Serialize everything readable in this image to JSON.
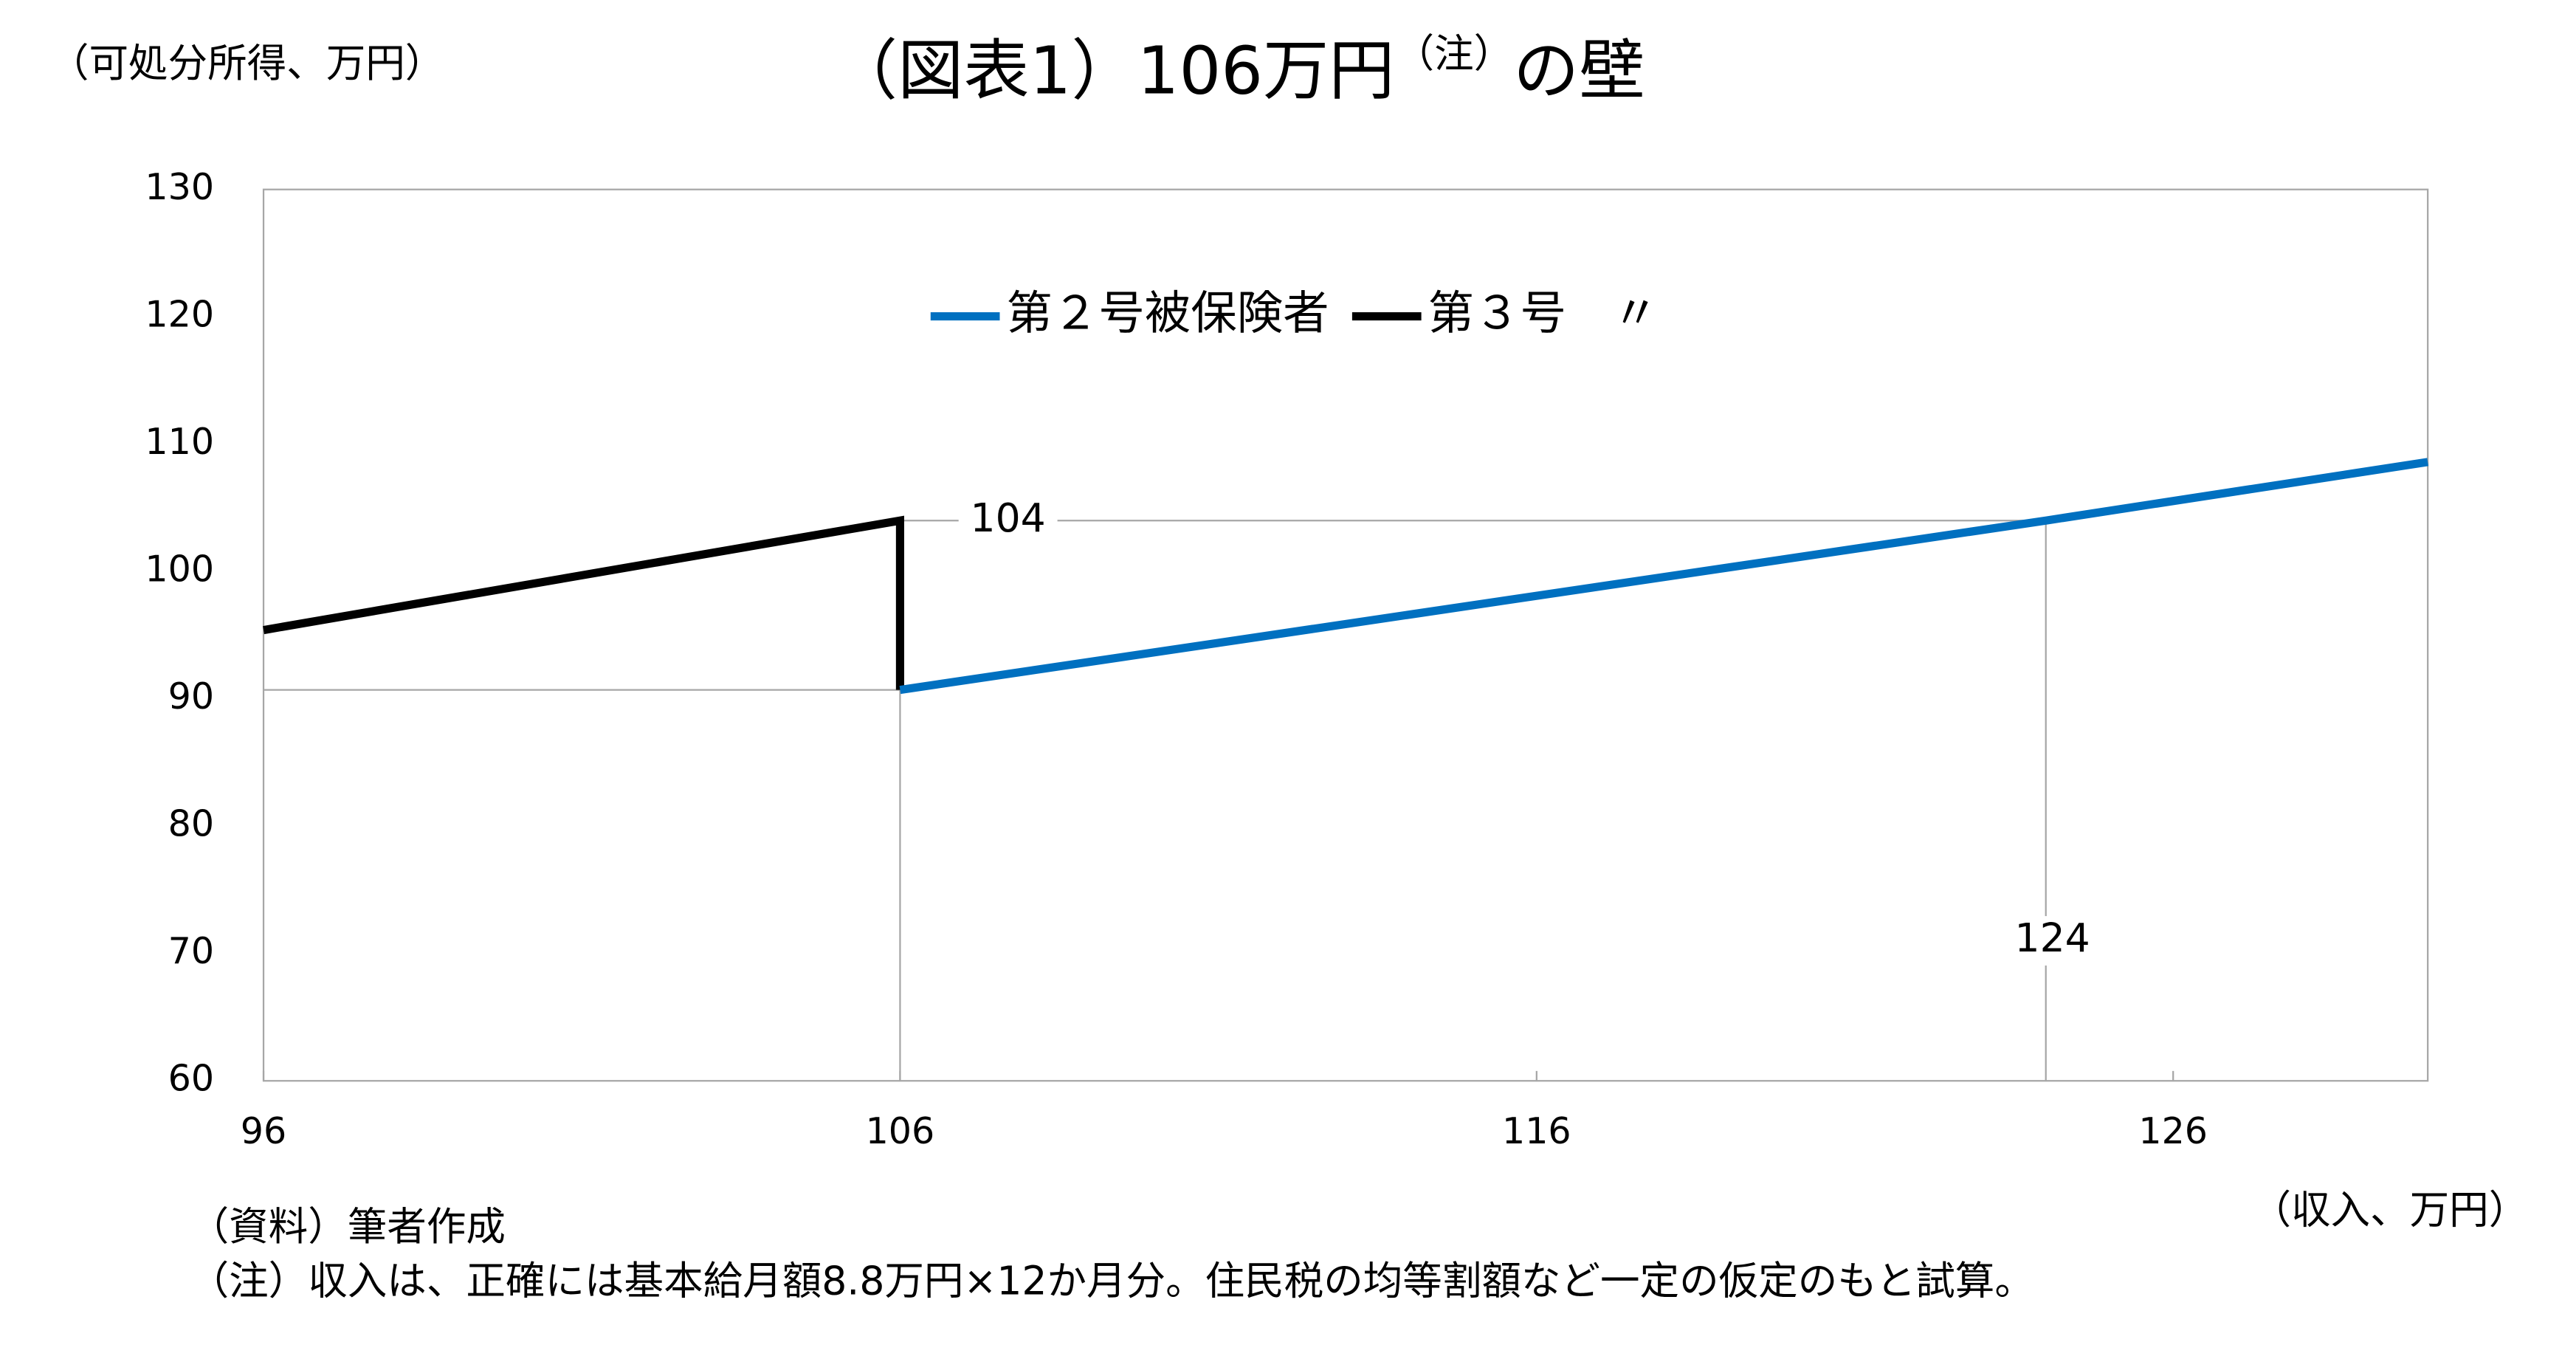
{
  "chart_data": {
    "type": "line",
    "title": "（図表1）106万円",
    "title_note": "（注）",
    "title_end": "の壁",
    "y_label": "（可処分所得、万円）",
    "x_label": "（収入、万円）",
    "source": "（資料）筆者作成",
    "note": "（注）収入は、正確には基本給月額8.8万円×12か月分。住民税の均等割額など一定の仮定のもと試算。",
    "series": [
      {
        "name": "第２号被保険者",
        "color": "#0070c0",
        "x": [
          106,
          124,
          130
        ],
        "values": [
          90.7,
          104,
          108.6
        ]
      },
      {
        "name": "第３号　〃",
        "color": "#000000",
        "x": [
          96,
          106,
          106
        ],
        "values": [
          95.4,
          104,
          90.7
        ]
      }
    ],
    "guides": [
      {
        "x": 124,
        "y": 104
      },
      {
        "x": 106,
        "y": 90.7
      }
    ],
    "xlim": [
      96,
      130
    ],
    "xticks": [
      96,
      106,
      116,
      126
    ],
    "ylim": [
      60,
      130
    ],
    "yticks": [
      60,
      70,
      80,
      90,
      100,
      110,
      120,
      130
    ],
    "legend": "top-center",
    "grid": false
  }
}
